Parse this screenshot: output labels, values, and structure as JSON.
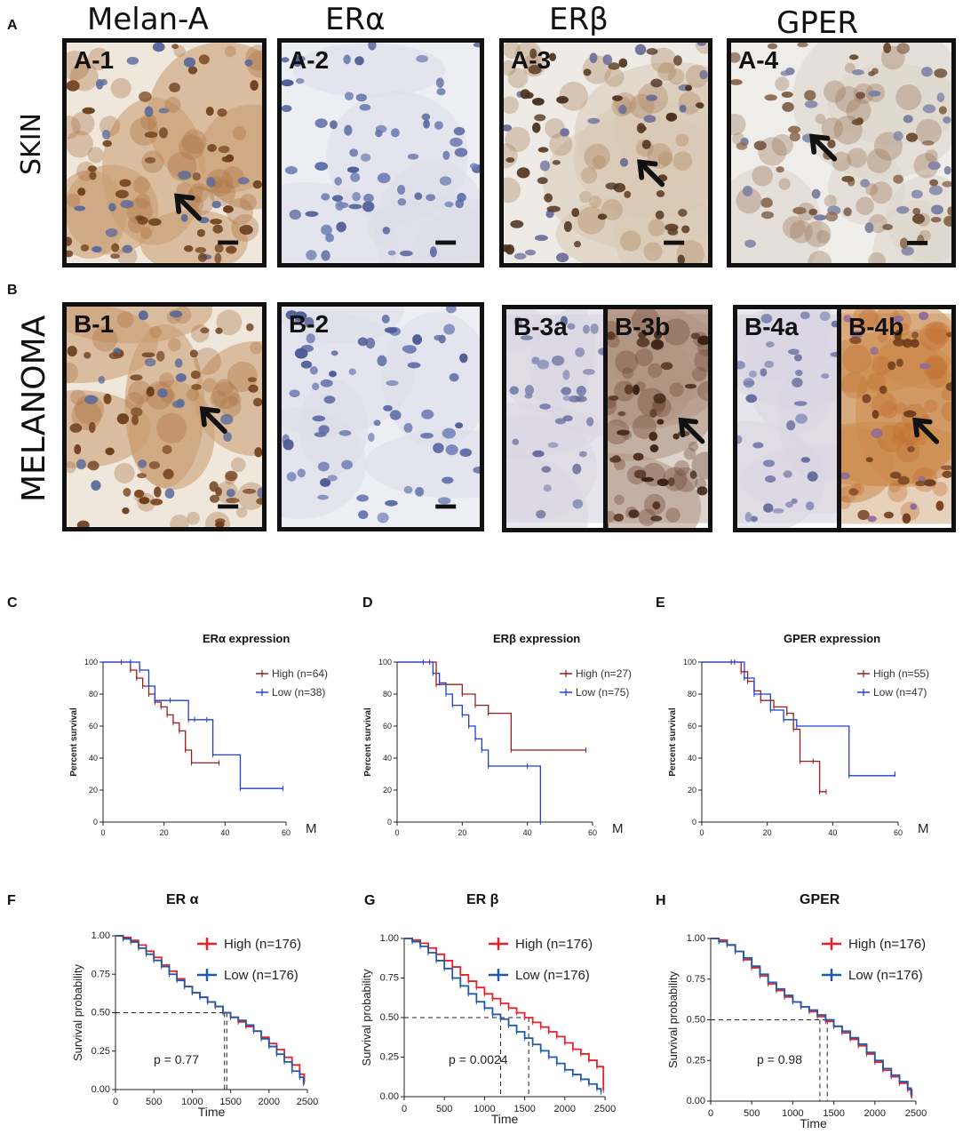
{
  "column_headers": [
    "Melan-A",
    "ERα",
    "ERβ",
    "GPER"
  ],
  "row_labels": {
    "skin": "SKIN",
    "melanoma": "MELANOMA"
  },
  "section_labels": {
    "A": "A",
    "B": "B"
  },
  "panels_skin": [
    {
      "tag": "A-1",
      "tone": "brown-strong",
      "arrow": true
    },
    {
      "tag": "A-2",
      "tone": "blue",
      "arrow": false
    },
    {
      "tag": "A-3",
      "tone": "brown-mid",
      "arrow": true
    },
    {
      "tag": "A-4",
      "tone": "brown-light",
      "arrow": true
    }
  ],
  "panels_melanoma": [
    {
      "tag": "B-1",
      "tone": "brown-strong",
      "arrow": true
    },
    {
      "tag": "B-2",
      "tone": "blue",
      "arrow": false
    },
    {
      "tag": "B-3a",
      "tone": "blue-light",
      "arrow": false
    },
    {
      "tag": "B-3b",
      "tone": "brown-dark",
      "arrow": true
    },
    {
      "tag": "B-4a",
      "tone": "blue-light",
      "arrow": false
    },
    {
      "tag": "B-4b",
      "tone": "brown-orange",
      "arrow": true
    }
  ],
  "colors": {
    "high_top": "#9b1c1c",
    "low_top": "#1f3fd6",
    "high_bottom": "#e8202a",
    "low_bottom": "#1f5aa8",
    "frame": "#111111"
  },
  "chart_data": [
    {
      "type": "line",
      "panel_label": "C",
      "title": "ERα expression",
      "xlabel": "M",
      "ylabel": "Percent survival",
      "xlim": [
        0,
        60
      ],
      "ylim": [
        0,
        100
      ],
      "xticks": [
        0,
        20,
        40,
        60
      ],
      "yticks": [
        0,
        20,
        40,
        60,
        80,
        100
      ],
      "series": [
        {
          "name": "High",
          "n_label": "(n=64)",
          "color": "#9b1c1c",
          "x": [
            0,
            6,
            9,
            11,
            13,
            15,
            17,
            19,
            21,
            23,
            25,
            27,
            29,
            38
          ],
          "y": [
            100,
            100,
            95,
            90,
            85,
            80,
            75,
            72,
            67,
            62,
            57,
            45,
            37,
            37
          ]
        },
        {
          "name": "Low",
          "n_label": "(n=38)",
          "color": "#1f3fd6",
          "x": [
            0,
            9,
            12,
            15,
            17,
            22,
            28,
            30,
            34,
            36,
            45,
            59
          ],
          "y": [
            100,
            100,
            95,
            85,
            76,
            76,
            64,
            64,
            64,
            42,
            21,
            21
          ]
        }
      ]
    },
    {
      "type": "line",
      "panel_label": "D",
      "title": "ERβ expression",
      "xlabel": "M",
      "ylabel": "Percent survival",
      "xlim": [
        0,
        60
      ],
      "ylim": [
        0,
        100
      ],
      "xticks": [
        0,
        20,
        40,
        60
      ],
      "yticks": [
        0,
        20,
        40,
        60,
        80,
        100
      ],
      "series": [
        {
          "name": "High",
          "n_label": "(n=27)",
          "color": "#9b1c1c",
          "x": [
            0,
            10,
            12,
            20,
            24,
            28,
            35,
            58
          ],
          "y": [
            100,
            100,
            86,
            80,
            73,
            68,
            45,
            45
          ]
        },
        {
          "name": "Low",
          "n_label": "(n=75)",
          "color": "#1f3fd6",
          "x": [
            0,
            8,
            11,
            13,
            15,
            17,
            20,
            22,
            24,
            26,
            28,
            40,
            44
          ],
          "y": [
            100,
            100,
            93,
            87,
            80,
            73,
            67,
            60,
            52,
            45,
            35,
            35,
            0
          ]
        }
      ]
    },
    {
      "type": "line",
      "panel_label": "E",
      "title": "GPER expression",
      "xlabel": "M",
      "ylabel": "Percent survival",
      "xlim": [
        0,
        60
      ],
      "ylim": [
        0,
        100
      ],
      "xticks": [
        0,
        20,
        40,
        60
      ],
      "yticks": [
        0,
        20,
        40,
        60,
        80,
        100
      ],
      "series": [
        {
          "name": "High",
          "n_label": "(n=55)",
          "color": "#9b1c1c",
          "x": [
            0,
            9,
            12,
            14,
            16,
            18,
            22,
            26,
            28,
            30,
            34,
            36,
            38
          ],
          "y": [
            100,
            100,
            94,
            88,
            82,
            76,
            72,
            68,
            58,
            38,
            38,
            19,
            19
          ]
        },
        {
          "name": "Low",
          "n_label": "(n=47)",
          "color": "#1f3fd6",
          "x": [
            0,
            10,
            13,
            16,
            21,
            25,
            29,
            45,
            59
          ],
          "y": [
            100,
            100,
            90,
            80,
            70,
            64,
            60,
            29,
            30
          ]
        }
      ]
    },
    {
      "type": "line",
      "panel_label": "F",
      "title": "ER α",
      "xlabel": "Time",
      "ylabel": "Survival probability",
      "xlim": [
        0,
        2500
      ],
      "ylim": [
        0,
        1
      ],
      "xticks": [
        0,
        500,
        1000,
        1500,
        2000,
        2500
      ],
      "yticks": [
        0,
        0.25,
        0.5,
        0.75,
        1.0
      ],
      "ytick_labels": [
        "0.00",
        "0.25",
        "0.50",
        "0.75",
        "1.00"
      ],
      "pvalue": "p = 0.77",
      "median_line_y": 0.5,
      "median_x": [
        1420,
        1450
      ],
      "series": [
        {
          "name": "High (n=176)",
          "color": "#e8202a",
          "x": [
            0,
            100,
            200,
            300,
            400,
            500,
            600,
            700,
            800,
            900,
            1000,
            1100,
            1200,
            1300,
            1400,
            1500,
            1600,
            1700,
            1800,
            1900,
            2000,
            2100,
            2200,
            2300,
            2400,
            2460
          ],
          "y": [
            1.0,
            0.99,
            0.97,
            0.94,
            0.9,
            0.86,
            0.81,
            0.77,
            0.72,
            0.67,
            0.63,
            0.6,
            0.57,
            0.54,
            0.5,
            0.47,
            0.44,
            0.41,
            0.38,
            0.34,
            0.3,
            0.26,
            0.21,
            0.16,
            0.1,
            0.05
          ]
        },
        {
          "name": "Low (n=176)",
          "color": "#1f5aa8",
          "x": [
            0,
            100,
            200,
            300,
            400,
            500,
            600,
            700,
            800,
            900,
            1000,
            1100,
            1200,
            1300,
            1400,
            1500,
            1600,
            1700,
            1800,
            1900,
            2000,
            2100,
            2200,
            2300,
            2400,
            2450
          ],
          "y": [
            1.0,
            0.98,
            0.96,
            0.92,
            0.88,
            0.84,
            0.8,
            0.75,
            0.71,
            0.67,
            0.63,
            0.6,
            0.57,
            0.54,
            0.5,
            0.47,
            0.45,
            0.42,
            0.38,
            0.33,
            0.28,
            0.23,
            0.18,
            0.12,
            0.08,
            0.04
          ]
        }
      ]
    },
    {
      "type": "line",
      "panel_label": "G",
      "title": "ER β",
      "xlabel": "Time",
      "ylabel": "Survival probability",
      "xlim": [
        0,
        2500
      ],
      "ylim": [
        0,
        1
      ],
      "xticks": [
        0,
        500,
        1000,
        1500,
        2000,
        2500
      ],
      "yticks": [
        0,
        0.25,
        0.5,
        0.75,
        1.0
      ],
      "ytick_labels": [
        "0.00",
        "0.25",
        "0.50",
        "0.75",
        "1.00"
      ],
      "pvalue": "p = 0.0024",
      "median_line_y": 0.5,
      "median_x": [
        1200,
        1550
      ],
      "series": [
        {
          "name": "High (n=176)",
          "color": "#e8202a",
          "x": [
            0,
            100,
            200,
            300,
            400,
            500,
            600,
            700,
            800,
            900,
            1000,
            1100,
            1200,
            1300,
            1400,
            1500,
            1600,
            1700,
            1800,
            1900,
            2000,
            2100,
            2200,
            2300,
            2400,
            2480
          ],
          "y": [
            1.0,
            0.99,
            0.97,
            0.94,
            0.9,
            0.86,
            0.82,
            0.77,
            0.73,
            0.69,
            0.65,
            0.62,
            0.59,
            0.56,
            0.53,
            0.5,
            0.47,
            0.44,
            0.41,
            0.38,
            0.34,
            0.3,
            0.27,
            0.23,
            0.19,
            0.04
          ]
        },
        {
          "name": "Low (n=176)",
          "color": "#1f5aa8",
          "x": [
            0,
            100,
            200,
            300,
            400,
            500,
            600,
            700,
            800,
            900,
            1000,
            1100,
            1200,
            1300,
            1400,
            1500,
            1600,
            1700,
            1800,
            1900,
            2000,
            2100,
            2200,
            2300,
            2400,
            2450
          ],
          "y": [
            1.0,
            0.98,
            0.95,
            0.91,
            0.86,
            0.81,
            0.75,
            0.7,
            0.65,
            0.6,
            0.56,
            0.52,
            0.49,
            0.45,
            0.41,
            0.37,
            0.33,
            0.29,
            0.25,
            0.21,
            0.17,
            0.14,
            0.11,
            0.08,
            0.05,
            0.03
          ]
        }
      ]
    },
    {
      "type": "line",
      "panel_label": "H",
      "title": "GPER",
      "xlabel": "Time",
      "ylabel": "Survival probability",
      "xlim": [
        0,
        2500
      ],
      "ylim": [
        0,
        1
      ],
      "xticks": [
        0,
        500,
        1000,
        1500,
        2000,
        2500
      ],
      "yticks": [
        0,
        0.25,
        0.5,
        0.75,
        1.0
      ],
      "ytick_labels": [
        "0.00",
        "0.25",
        "0.50",
        "0.75",
        "1.00"
      ],
      "pvalue": "p = 0.98",
      "median_line_y": 0.5,
      "median_x": [
        1330,
        1420
      ],
      "series": [
        {
          "name": "High (n=176)",
          "color": "#e8202a",
          "x": [
            0,
            100,
            200,
            300,
            400,
            500,
            600,
            700,
            800,
            900,
            1000,
            1100,
            1200,
            1300,
            1400,
            1500,
            1600,
            1700,
            1800,
            1900,
            2000,
            2100,
            2200,
            2300,
            2400,
            2450
          ],
          "y": [
            1.0,
            0.99,
            0.96,
            0.92,
            0.87,
            0.82,
            0.77,
            0.72,
            0.68,
            0.64,
            0.61,
            0.58,
            0.55,
            0.52,
            0.49,
            0.46,
            0.42,
            0.38,
            0.34,
            0.29,
            0.24,
            0.19,
            0.15,
            0.11,
            0.07,
            0.03
          ]
        },
        {
          "name": "Low (n=176)",
          "color": "#1f5aa8",
          "x": [
            0,
            100,
            200,
            300,
            400,
            500,
            600,
            700,
            800,
            900,
            1000,
            1100,
            1200,
            1300,
            1400,
            1500,
            1600,
            1700,
            1800,
            1900,
            2000,
            2100,
            2200,
            2300,
            2400,
            2440
          ],
          "y": [
            1.0,
            0.98,
            0.96,
            0.92,
            0.88,
            0.83,
            0.78,
            0.73,
            0.69,
            0.65,
            0.61,
            0.58,
            0.56,
            0.53,
            0.5,
            0.46,
            0.43,
            0.39,
            0.35,
            0.3,
            0.25,
            0.2,
            0.16,
            0.12,
            0.08,
            0.04
          ]
        }
      ]
    }
  ]
}
